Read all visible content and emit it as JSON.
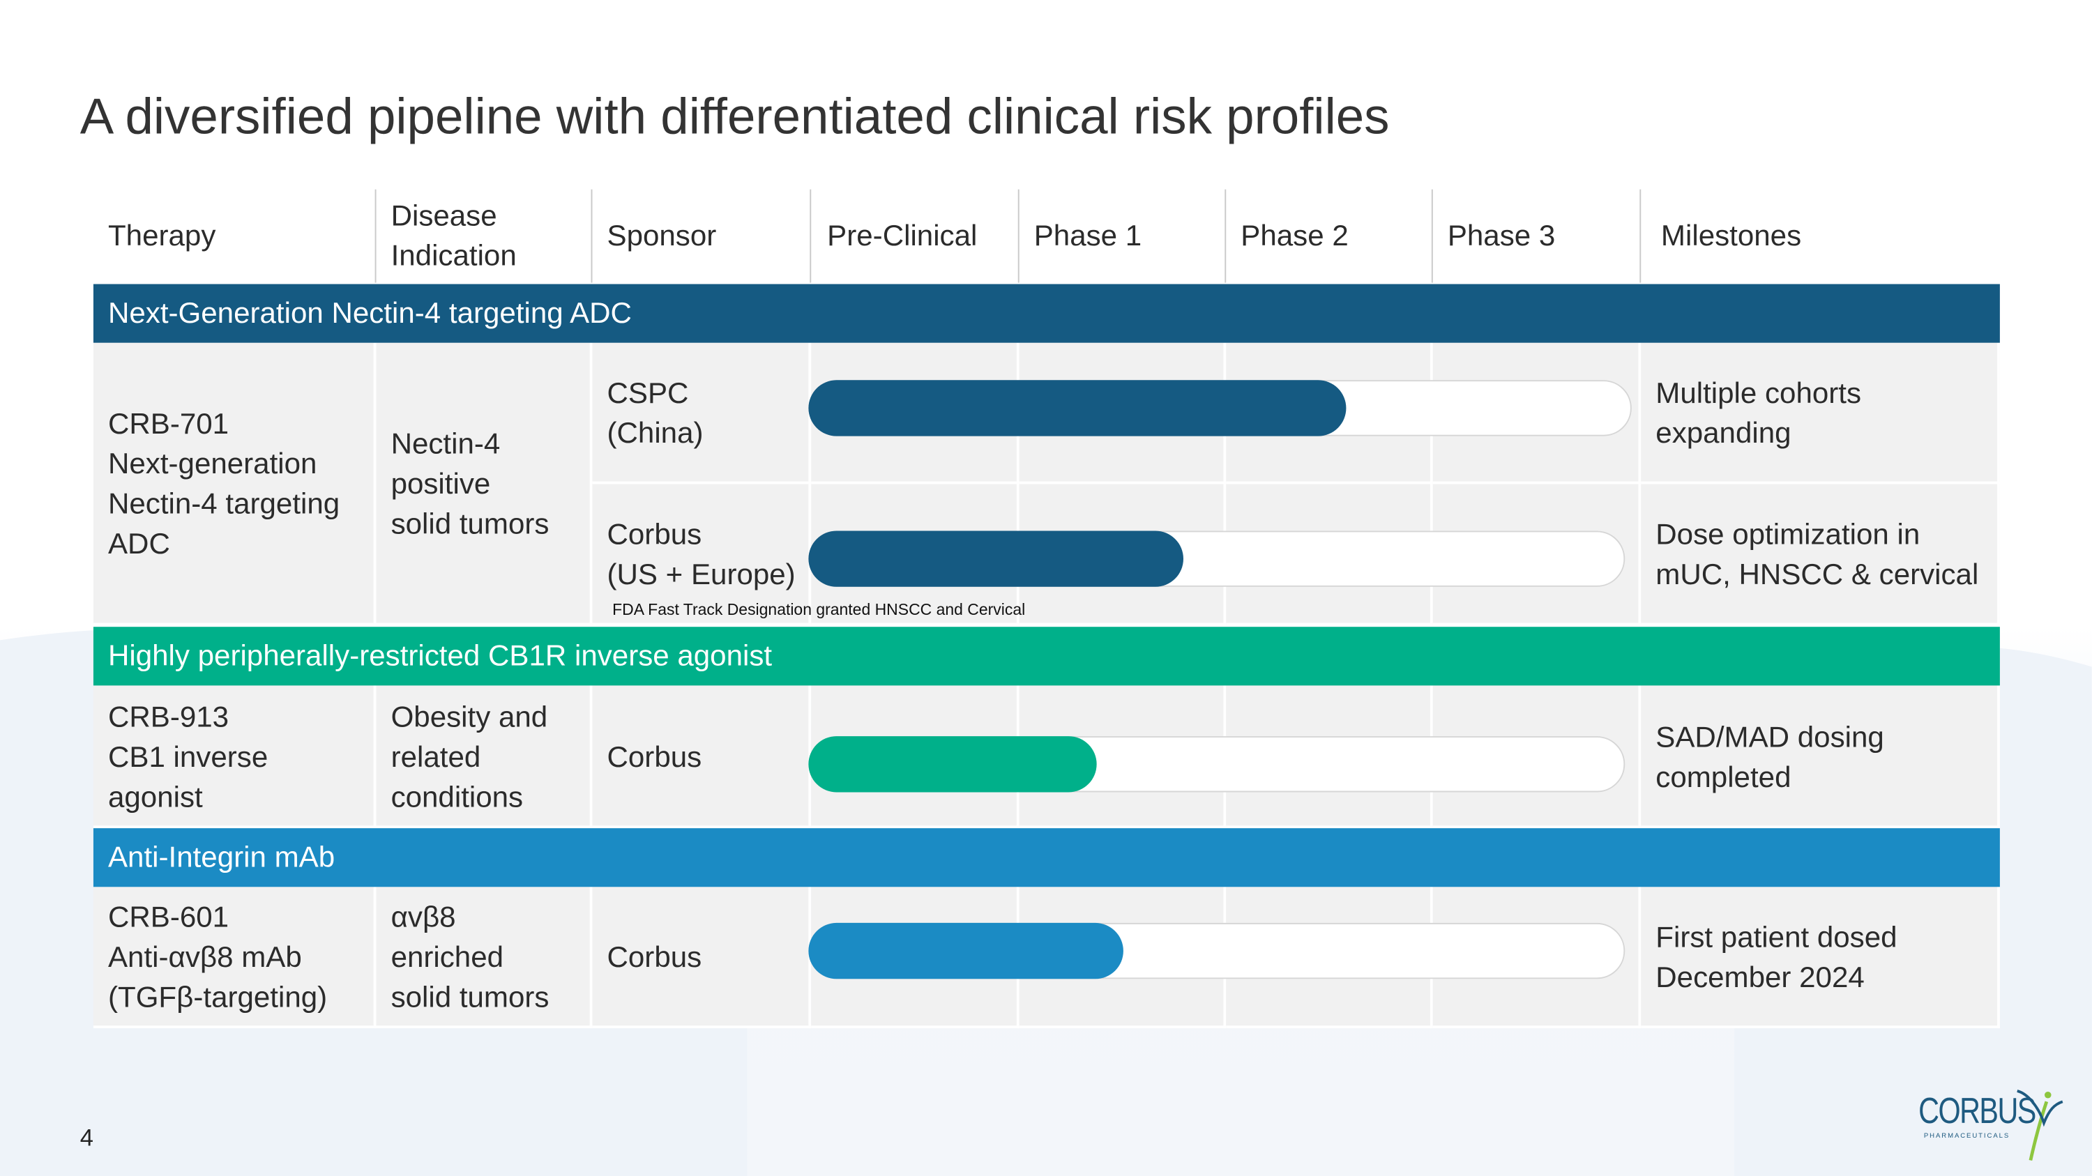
{
  "title": "A diversified pipeline with differentiated clinical risk profiles",
  "table": {
    "header": [
      "Therapy",
      "Disease\nIndication",
      "Sponsor",
      "Pre-Clinical",
      "Phase 1",
      "Phase 2",
      "Phase 3",
      "Milestones"
    ],
    "sections": [
      {
        "label": "Next-Generation Nectin-4 targeting ADC",
        "therapy": "CRB-701\nNext-generation\nNectin-4 targeting\nADC",
        "indication": "Nectin-4\npositive\nsolid tumors",
        "rows": [
          {
            "sponsor": "CSPC\n(China)",
            "milestone": "Multiple cohorts\nexpanding"
          },
          {
            "sponsor": "Corbus\n(US + Europe)",
            "milestone": "Dose optimization in\nmUC, HNSCC & cervical"
          }
        ],
        "note": "FDA Fast Track Designation granted HNSCC and Cervical"
      },
      {
        "label": "Highly peripherally-restricted CB1R inverse agonist",
        "therapy": "CRB-913\nCB1 inverse\nagonist",
        "indication": "Obesity and\nrelated\nconditions",
        "rows": [
          {
            "sponsor": "Corbus",
            "milestone": "SAD/MAD dosing\ncompleted"
          }
        ]
      },
      {
        "label": "Anti-Integrin mAb",
        "therapy": "CRB-601\nAnti-αvβ8 mAb\n(TGFβ-targeting)",
        "indication": "αvβ8\nenriched\nsolid tumors",
        "rows": [
          {
            "sponsor": "Corbus",
            "milestone": "First patient dosed\nDecember 2024"
          }
        ]
      }
    ]
  },
  "page_number": "4",
  "logo": {
    "name": "CORBUS",
    "tagline": "PHARMACEUTICALS"
  }
}
